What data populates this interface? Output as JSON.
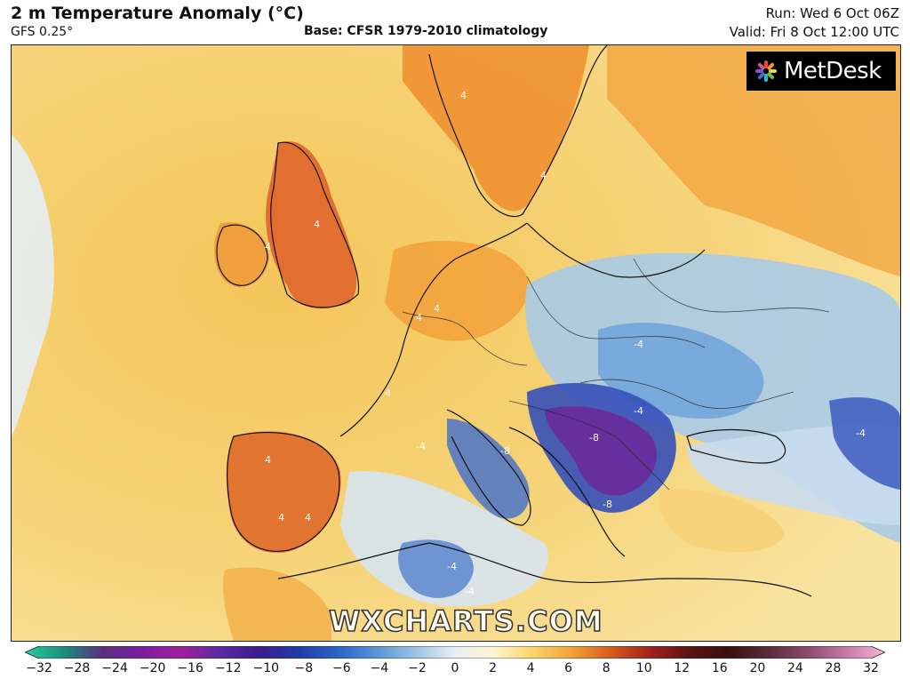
{
  "header": {
    "title": "2 m Temperature Anomaly (°C)",
    "model": "GFS 0.25°",
    "base": "Base: CFSR 1979-2010 climatology",
    "run": "Run: Wed 6 Oct 06Z",
    "valid": "Valid: Fri 8 Oct 12:00 UTC"
  },
  "branding": {
    "logo_text": "MetDesk",
    "watermark": "WXCHARTS.COM"
  },
  "colorbar": {
    "ticks": [
      "−32",
      "−28",
      "−24",
      "−20",
      "−16",
      "−12",
      "−10",
      "−8",
      "−6",
      "−4",
      "−2",
      "0",
      "2",
      "4",
      "6",
      "8",
      "10",
      "12",
      "16",
      "20",
      "24",
      "28",
      "32"
    ],
    "colors": [
      "#2ec9a0",
      "#1a8f7a",
      "#5b2c83",
      "#7a1fa0",
      "#a01f9c",
      "#5a2b9e",
      "#3a1e8c",
      "#1f3ca8",
      "#2c64c8",
      "#5a94d6",
      "#9cc4e6",
      "#e8eef4",
      "#fff4cf",
      "#f8d36a",
      "#f2a13a",
      "#d45a1e",
      "#a0221c",
      "#5a1414",
      "#3a1010",
      "#5a2a3a",
      "#8a4a6a",
      "#c47aa4",
      "#f2b6d6"
    ],
    "unit": "°C"
  },
  "map": {
    "contour_labels": [
      "4",
      "4",
      "4",
      "4",
      "4",
      "4",
      "4",
      "4",
      "4",
      "4",
      "-4",
      "-4",
      "-4",
      "-4",
      "-4",
      "-4",
      "-8",
      "-8",
      "-8"
    ],
    "region": "Europe"
  }
}
